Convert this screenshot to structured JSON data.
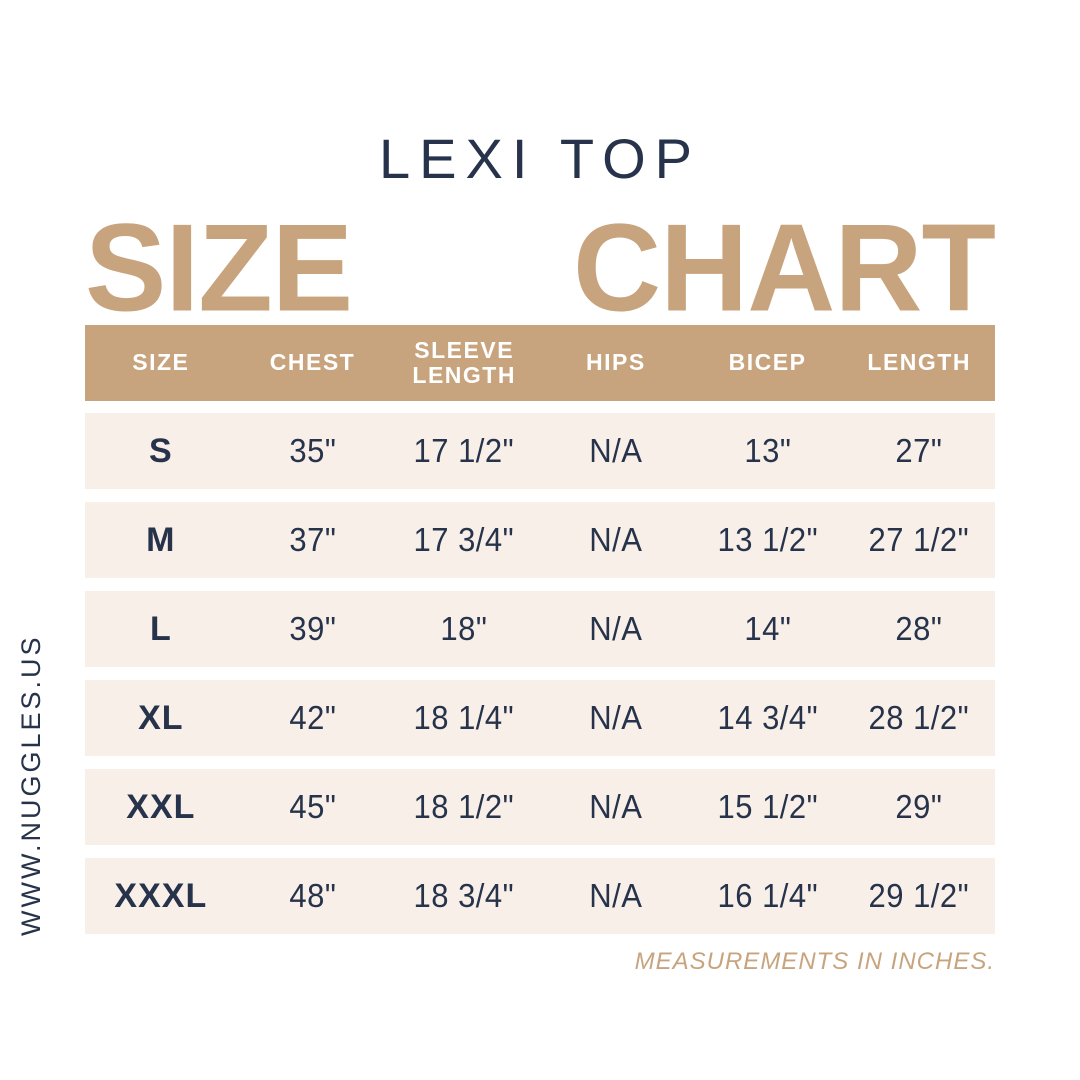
{
  "page": {
    "product_title": "LEXI TOP",
    "hero_title_words": [
      "SIZE",
      "CHART"
    ],
    "footer_note": "MEASUREMENTS IN INCHES.",
    "website_vertical": "WWW.NUGGLES.US"
  },
  "colors": {
    "tan_accent": "#c8a47e",
    "row_cream": "#f8efe8",
    "navy_text": "#26334a",
    "background": "#ffffff",
    "header_text": "#ffffff"
  },
  "chart_data": {
    "type": "table",
    "title": "LEXI TOP SIZE CHART",
    "units": "inches",
    "columns": [
      "SIZE",
      "CHEST",
      "SLEEVE LENGTH",
      "HIPS",
      "BICEP",
      "LENGTH"
    ],
    "rows": [
      [
        "S",
        "35\"",
        "17 1/2\"",
        "N/A",
        "13\"",
        "27\""
      ],
      [
        "M",
        "37\"",
        "17 3/4\"",
        "N/A",
        "13 1/2\"",
        "27 1/2\""
      ],
      [
        "L",
        "39\"",
        "18\"",
        "N/A",
        "14\"",
        "28\""
      ],
      [
        "XL",
        "42\"",
        "18 1/4\"",
        "N/A",
        "14 3/4\"",
        "28 1/2\""
      ],
      [
        "XXL",
        "45\"",
        "18 1/2\"",
        "N/A",
        "15 1/2\"",
        "29\""
      ],
      [
        "XXXL",
        "48\"",
        "18 3/4\"",
        "N/A",
        "16 1/4\"",
        "29 1/2\""
      ]
    ]
  }
}
